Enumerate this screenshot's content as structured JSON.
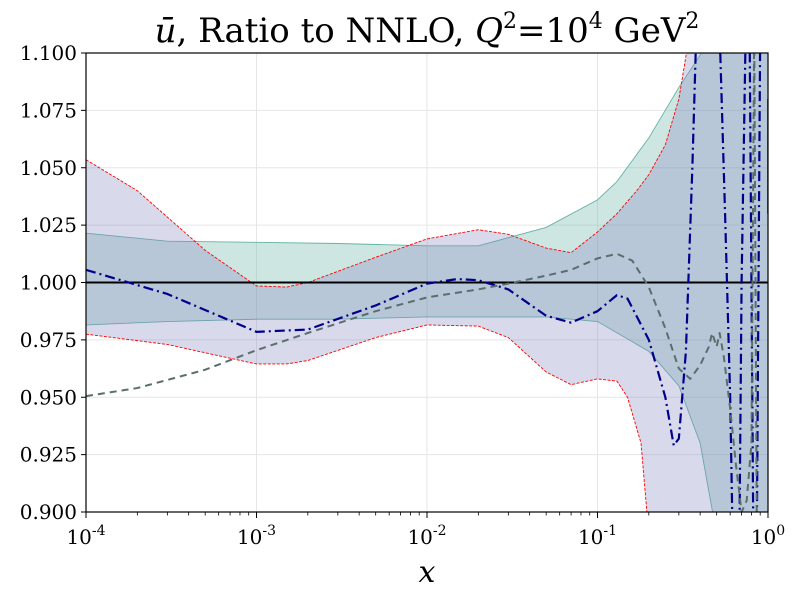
{
  "chart_data": {
    "type": "line",
    "title": {
      "prefix_symbol": "ū",
      "text": ", Ratio to NNLO, ",
      "q_symbol": "Q",
      "q_exp": "2",
      "equals": "=10",
      "q_value_exp": "4",
      "unit": " GeV",
      "unit_exp": "2"
    },
    "xlabel": "x",
    "xscale": "log",
    "xlim": [
      0.0001,
      1
    ],
    "ylim": [
      0.9,
      1.1
    ],
    "grid": true,
    "x_ticks": [
      {
        "value": 0.0001,
        "base": "10",
        "exp": "-4"
      },
      {
        "value": 0.001,
        "base": "10",
        "exp": "-3"
      },
      {
        "value": 0.01,
        "base": "10",
        "exp": "-2"
      },
      {
        "value": 0.1,
        "base": "10",
        "exp": "-1"
      },
      {
        "value": 1,
        "base": "10",
        "exp": "0"
      }
    ],
    "y_ticks": [
      {
        "value": 0.9,
        "label": "0.900"
      },
      {
        "value": 0.925,
        "label": "0.925"
      },
      {
        "value": 0.95,
        "label": "0.950"
      },
      {
        "value": 0.975,
        "label": "0.975"
      },
      {
        "value": 1.0,
        "label": "1.000"
      },
      {
        "value": 1.025,
        "label": "1.025"
      },
      {
        "value": 1.05,
        "label": "1.050"
      },
      {
        "value": 1.075,
        "label": "1.075"
      },
      {
        "value": 1.1,
        "label": "1.100"
      }
    ],
    "bands": [
      {
        "name": "teal band",
        "fill": "#66b2a6",
        "opacity": 0.32,
        "edge": "#66b2a6",
        "upper": [
          [
            0.0001,
            1.0215
          ],
          [
            0.0003,
            1.018
          ],
          [
            0.001,
            1.0175
          ],
          [
            0.003,
            1.017
          ],
          [
            0.01,
            1.016
          ],
          [
            0.02,
            1.016
          ],
          [
            0.05,
            1.024
          ],
          [
            0.1,
            1.036
          ],
          [
            0.13,
            1.044
          ],
          [
            0.2,
            1.063
          ],
          [
            0.3,
            1.085
          ],
          [
            0.5,
            1.11
          ],
          [
            1,
            1.11
          ]
        ],
        "lower": [
          [
            0.0001,
            0.9815
          ],
          [
            0.0003,
            0.983
          ],
          [
            0.001,
            0.984
          ],
          [
            0.003,
            0.984
          ],
          [
            0.01,
            0.985
          ],
          [
            0.02,
            0.985
          ],
          [
            0.05,
            0.985
          ],
          [
            0.1,
            0.983
          ],
          [
            0.2,
            0.97
          ],
          [
            0.3,
            0.955
          ],
          [
            0.4,
            0.93
          ],
          [
            0.5,
            0.89
          ],
          [
            1,
            0.89
          ]
        ]
      },
      {
        "name": "lavender band",
        "fill": "#8080c0",
        "opacity": 0.3,
        "edge": "#ff0000",
        "upper": [
          [
            0.0001,
            1.0535
          ],
          [
            0.0002,
            1.04
          ],
          [
            0.0005,
            1.014
          ],
          [
            0.001,
            0.9985
          ],
          [
            0.0015,
            0.998
          ],
          [
            0.002,
            1.0
          ],
          [
            0.005,
            1.011
          ],
          [
            0.01,
            1.019
          ],
          [
            0.02,
            1.023
          ],
          [
            0.03,
            1.021
          ],
          [
            0.05,
            1.015
          ],
          [
            0.07,
            1.013
          ],
          [
            0.1,
            1.022
          ],
          [
            0.13,
            1.03
          ],
          [
            0.17,
            1.04
          ],
          [
            0.2,
            1.047
          ],
          [
            0.25,
            1.06
          ],
          [
            0.3,
            1.08
          ],
          [
            0.35,
            1.11
          ],
          [
            0.45,
            1.11
          ],
          [
            0.5,
            1.11
          ],
          [
            0.6,
            1.11
          ],
          [
            0.7,
            1.11
          ],
          [
            0.8,
            1.11
          ],
          [
            1,
            1.11
          ]
        ],
        "lower": [
          [
            0.0001,
            0.9775
          ],
          [
            0.0003,
            0.973
          ],
          [
            0.0007,
            0.967
          ],
          [
            0.001,
            0.9645
          ],
          [
            0.0015,
            0.9645
          ],
          [
            0.002,
            0.966
          ],
          [
            0.005,
            0.976
          ],
          [
            0.01,
            0.9815
          ],
          [
            0.02,
            0.981
          ],
          [
            0.03,
            0.976
          ],
          [
            0.05,
            0.961
          ],
          [
            0.07,
            0.9555
          ],
          [
            0.1,
            0.958
          ],
          [
            0.13,
            0.957
          ],
          [
            0.15,
            0.95
          ],
          [
            0.18,
            0.93
          ],
          [
            0.2,
            0.89
          ],
          [
            0.3,
            0.89
          ],
          [
            1,
            0.89
          ]
        ]
      }
    ],
    "series": [
      {
        "name": "central ratio",
        "color": "#000000",
        "dash": "",
        "width": 2,
        "points": [
          [
            0.0001,
            1.0
          ],
          [
            1,
            1.0
          ]
        ]
      },
      {
        "name": "dash-dot series",
        "color": "#00008b",
        "dash": "10,4,2,4",
        "width": 2.2,
        "points": [
          [
            0.0001,
            1.0055
          ],
          [
            0.0003,
            0.995
          ],
          [
            0.001,
            0.9785
          ],
          [
            0.002,
            0.9795
          ],
          [
            0.005,
            0.99
          ],
          [
            0.01,
            0.9995
          ],
          [
            0.015,
            1.0015
          ],
          [
            0.02,
            1.001
          ],
          [
            0.03,
            0.997
          ],
          [
            0.05,
            0.9855
          ],
          [
            0.07,
            0.9825
          ],
          [
            0.1,
            0.9875
          ],
          [
            0.13,
            0.9945
          ],
          [
            0.15,
            0.993
          ],
          [
            0.2,
            0.975
          ],
          [
            0.25,
            0.95
          ],
          [
            0.28,
            0.929
          ],
          [
            0.3,
            0.932
          ],
          [
            0.33,
            0.97
          ],
          [
            0.36,
            1.05
          ],
          [
            0.38,
            1.11
          ],
          [
            0.52,
            1.11
          ],
          [
            0.56,
            1.03
          ],
          [
            0.6,
            0.95
          ],
          [
            0.62,
            0.89
          ],
          [
            0.68,
            0.89
          ],
          [
            0.7,
            1.0
          ],
          [
            0.74,
            1.11
          ],
          [
            0.78,
            1.11
          ],
          [
            0.82,
            0.89
          ],
          [
            0.86,
            0.89
          ],
          [
            0.9,
            1.11
          ]
        ]
      },
      {
        "name": "dashed series",
        "color": "#5a6e6e",
        "dash": "7,5",
        "width": 2,
        "points": [
          [
            0.0001,
            0.9505
          ],
          [
            0.0002,
            0.954
          ],
          [
            0.0005,
            0.962
          ],
          [
            0.001,
            0.9705
          ],
          [
            0.002,
            0.978
          ],
          [
            0.005,
            0.9875
          ],
          [
            0.01,
            0.9935
          ],
          [
            0.02,
            0.997
          ],
          [
            0.03,
            0.9995
          ],
          [
            0.05,
            1.003
          ],
          [
            0.07,
            1.0055
          ],
          [
            0.1,
            1.0105
          ],
          [
            0.13,
            1.0125
          ],
          [
            0.16,
            1.0095
          ],
          [
            0.2,
            0.998
          ],
          [
            0.25,
            0.98
          ],
          [
            0.3,
            0.9625
          ],
          [
            0.35,
            0.958
          ],
          [
            0.4,
            0.964
          ],
          [
            0.45,
            0.972
          ],
          [
            0.47,
            0.978
          ],
          [
            0.5,
            0.972
          ],
          [
            0.52,
            0.978
          ],
          [
            0.55,
            0.968
          ],
          [
            0.6,
            0.945
          ],
          [
            0.65,
            0.92
          ],
          [
            0.7,
            0.9
          ],
          [
            0.75,
            0.905
          ],
          [
            0.8,
            0.93
          ],
          [
            0.83,
            1.11
          ],
          [
            0.86,
            0.89
          ],
          [
            0.9,
            0.89
          ]
        ]
      },
      {
        "name": "red vertical edges",
        "color": "#ff0000",
        "dash": "",
        "width": 1,
        "points": [
          [
            0.995,
            1.08
          ],
          [
            0.995,
            1.03
          ]
        ]
      }
    ]
  }
}
